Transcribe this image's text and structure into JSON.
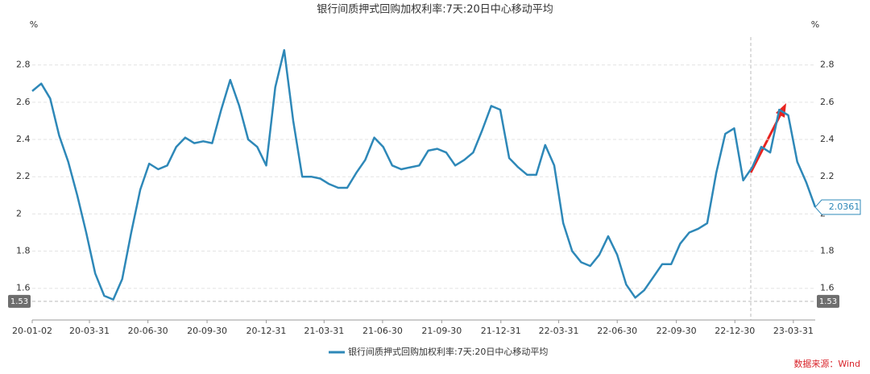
{
  "chart_data": {
    "type": "line",
    "title": "银行间质押式回购加权利率:7天:20日中心移动平均",
    "y_unit": "%",
    "source": "数据来源：Wind",
    "pointer_value": 1.53,
    "x": [
      "20-01-02",
      "20-01-16",
      "20-01-30",
      "20-02-13",
      "20-02-27",
      "20-03-12",
      "20-03-26",
      "20-04-09",
      "20-04-23",
      "20-05-07",
      "20-05-21",
      "20-06-04",
      "20-06-18",
      "20-07-02",
      "20-07-16",
      "20-07-30",
      "20-08-13",
      "20-08-27",
      "20-09-10",
      "20-09-24",
      "20-10-08",
      "20-10-22",
      "20-11-05",
      "20-11-19",
      "20-12-03",
      "20-12-17",
      "20-12-31",
      "21-01-14",
      "21-01-28",
      "21-02-11",
      "21-02-25",
      "21-03-11",
      "21-03-25",
      "21-04-08",
      "21-04-22",
      "21-05-06",
      "21-05-20",
      "21-06-03",
      "21-06-17",
      "21-07-01",
      "21-07-15",
      "21-07-29",
      "21-08-12",
      "21-08-26",
      "21-09-09",
      "21-09-23",
      "21-10-07",
      "21-10-21",
      "21-11-04",
      "21-11-18",
      "21-12-02",
      "21-12-16",
      "21-12-30",
      "22-01-13",
      "22-01-27",
      "22-02-10",
      "22-02-24",
      "22-03-10",
      "22-03-24",
      "22-04-07",
      "22-04-21",
      "22-05-05",
      "22-05-19",
      "22-06-02",
      "22-06-16",
      "22-06-30",
      "22-07-14",
      "22-07-28",
      "22-08-11",
      "22-08-25",
      "22-09-08",
      "22-09-22",
      "22-10-06",
      "22-10-20",
      "22-11-03",
      "22-11-17",
      "22-12-01",
      "22-12-15",
      "22-12-29",
      "23-01-12",
      "23-01-26",
      "23-02-09",
      "23-02-23",
      "23-03-09",
      "23-03-23",
      "23-04-06",
      "23-04-20",
      "23-05-04"
    ],
    "series": [
      {
        "name": "银行间质押式回购加权利率:7天:20日中心移动平均",
        "color": "#2e88b8",
        "values": [
          2.66,
          2.7,
          2.62,
          2.42,
          2.28,
          2.1,
          1.9,
          1.68,
          1.56,
          1.54,
          1.65,
          1.9,
          2.13,
          2.27,
          2.24,
          2.26,
          2.36,
          2.41,
          2.38,
          2.39,
          2.38,
          2.56,
          2.72,
          2.58,
          2.4,
          2.36,
          2.26,
          2.68,
          2.88,
          2.5,
          2.2,
          2.2,
          2.19,
          2.16,
          2.14,
          2.14,
          2.22,
          2.29,
          2.41,
          2.36,
          2.26,
          2.24,
          2.25,
          2.26,
          2.34,
          2.35,
          2.33,
          2.26,
          2.29,
          2.33,
          2.45,
          2.58,
          2.56,
          2.3,
          2.25,
          2.21,
          2.21,
          2.37,
          2.26,
          1.95,
          1.8,
          1.74,
          1.72,
          1.78,
          1.88,
          1.78,
          1.62,
          1.55,
          1.59,
          1.66,
          1.73,
          1.73,
          1.84,
          1.9,
          1.92,
          1.95,
          2.22,
          2.43,
          2.46,
          2.18,
          2.25,
          2.36,
          2.33,
          2.56,
          2.53,
          2.28,
          2.17,
          2.0361
        ]
      }
    ],
    "xlim": [
      "20-01-02",
      "23-05-04"
    ],
    "xticks": [
      "20-01-02",
      "20-03-31",
      "20-06-30",
      "20-09-30",
      "20-12-31",
      "21-03-31",
      "21-06-30",
      "21-09-30",
      "21-12-31",
      "22-03-31",
      "22-06-30",
      "22-09-30",
      "22-12-30",
      "23-03-31"
    ],
    "ylim": [
      1.43,
      2.95
    ],
    "yticks": [
      1.6,
      1.8,
      2,
      2.2,
      2.4,
      2.6,
      2.8
    ],
    "grid": true,
    "legend": "bottom"
  }
}
